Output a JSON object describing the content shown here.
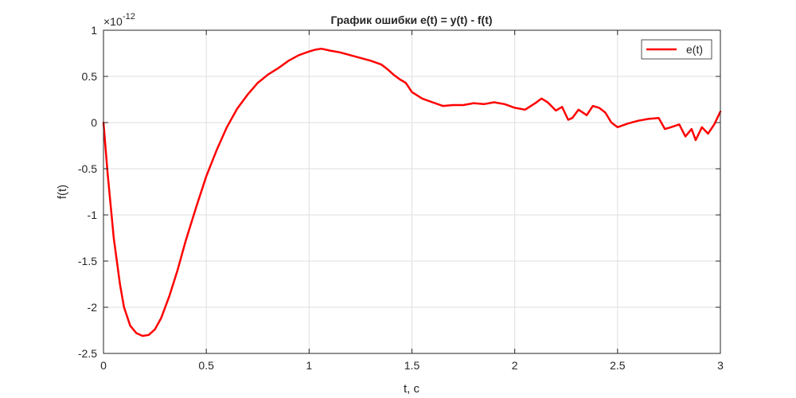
{
  "chart_data": {
    "type": "line",
    "title": "График ошибки e(t) = y(t) - f(t)",
    "xlabel": "t, c",
    "ylabel": "f(t)",
    "xlim": [
      0,
      3
    ],
    "ylim": [
      -2.5,
      1
    ],
    "y_exponent_label": "×10",
    "y_exponent_value": "-12",
    "x_ticks": [
      0,
      0.5,
      1,
      1.5,
      2,
      2.5,
      3
    ],
    "x_tick_labels": [
      "0",
      "0.5",
      "1",
      "1.5",
      "2",
      "2.5",
      "3"
    ],
    "y_ticks": [
      1,
      0.5,
      0,
      -0.5,
      -1,
      -1.5,
      -2,
      -2.5
    ],
    "y_tick_labels": [
      "1",
      "0.5",
      "0",
      "-0.5",
      "-1",
      "-1.5",
      "-2",
      "-2.5"
    ],
    "grid": true,
    "legend_position": "top-right",
    "series": [
      {
        "name": "e(t)",
        "color": "#ff0000",
        "x": [
          0,
          0.02,
          0.05,
          0.08,
          0.1,
          0.13,
          0.16,
          0.19,
          0.22,
          0.25,
          0.28,
          0.32,
          0.36,
          0.4,
          0.45,
          0.5,
          0.55,
          0.6,
          0.65,
          0.7,
          0.75,
          0.8,
          0.85,
          0.9,
          0.95,
          1.0,
          1.03,
          1.06,
          1.1,
          1.15,
          1.2,
          1.25,
          1.3,
          1.35,
          1.38,
          1.41,
          1.44,
          1.47,
          1.5,
          1.55,
          1.6,
          1.65,
          1.7,
          1.75,
          1.8,
          1.85,
          1.9,
          1.95,
          2.0,
          2.05,
          2.1,
          2.13,
          2.16,
          2.2,
          2.23,
          2.26,
          2.28,
          2.31,
          2.35,
          2.38,
          2.41,
          2.44,
          2.47,
          2.5,
          2.55,
          2.6,
          2.65,
          2.7,
          2.73,
          2.76,
          2.8,
          2.83,
          2.86,
          2.88,
          2.91,
          2.94,
          2.97,
          3.0
        ],
        "y": [
          0.0,
          -0.55,
          -1.25,
          -1.75,
          -2.0,
          -2.2,
          -2.28,
          -2.31,
          -2.3,
          -2.24,
          -2.12,
          -1.88,
          -1.6,
          -1.28,
          -0.92,
          -0.58,
          -0.3,
          -0.05,
          0.15,
          0.3,
          0.43,
          0.52,
          0.59,
          0.67,
          0.73,
          0.77,
          0.79,
          0.8,
          0.78,
          0.76,
          0.73,
          0.7,
          0.67,
          0.63,
          0.58,
          0.52,
          0.47,
          0.43,
          0.33,
          0.26,
          0.22,
          0.18,
          0.19,
          0.19,
          0.21,
          0.2,
          0.22,
          0.2,
          0.16,
          0.14,
          0.21,
          0.26,
          0.22,
          0.13,
          0.17,
          0.03,
          0.05,
          0.14,
          0.08,
          0.18,
          0.16,
          0.11,
          0.0,
          -0.05,
          -0.01,
          0.02,
          0.04,
          0.05,
          -0.07,
          -0.05,
          -0.02,
          -0.15,
          -0.07,
          -0.19,
          -0.05,
          -0.12,
          -0.02,
          0.12
        ]
      }
    ]
  }
}
